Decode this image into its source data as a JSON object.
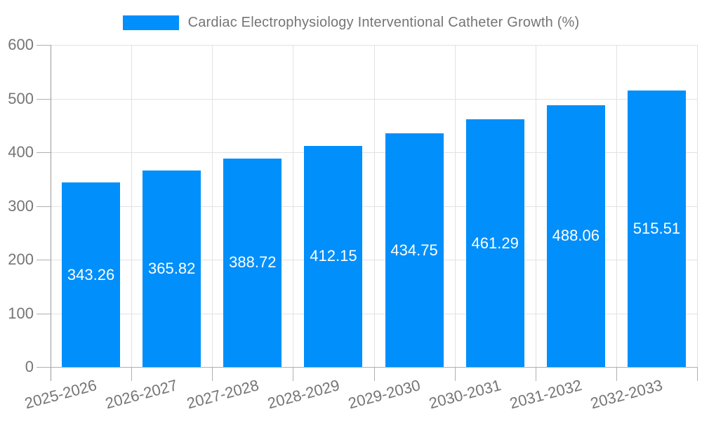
{
  "chart_data": {
    "type": "bar",
    "title": "Cardiac Electrophysiology Interventional Catheter Growth (%)",
    "categories": [
      "2025-2026",
      "2026-2027",
      "2027-2028",
      "2028-2029",
      "2029-2030",
      "2030-2031",
      "2031-2032",
      "2032-2033"
    ],
    "values": [
      343.26,
      365.82,
      388.72,
      412.15,
      434.75,
      461.29,
      488.06,
      515.51
    ],
    "value_labels": [
      "343.26",
      "365.82",
      "388.72",
      "412.15",
      "434.75",
      "461.29",
      "488.06",
      "515.51"
    ],
    "xlabel": "",
    "ylabel": "",
    "ylim": [
      0,
      600
    ],
    "yticks": [
      0,
      100,
      200,
      300,
      400,
      500,
      600
    ],
    "ytick_labels": [
      "0",
      "100",
      "200",
      "300",
      "400",
      "500",
      "600"
    ],
    "grid": true,
    "legend_position": "top",
    "x_label_rotation_deg": -15,
    "colors": {
      "bar": "#008FFB",
      "grid_line": "#e2e2e2",
      "axis_line": "#999999",
      "tick": "#b0b0b0",
      "label_text": "#757575",
      "value_text": "#ffffff",
      "background": "#ffffff"
    }
  }
}
